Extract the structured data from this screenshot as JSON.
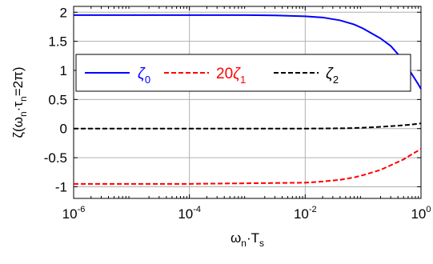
{
  "chart_data": {
    "type": "line",
    "xscale": "log",
    "xlim": [
      1e-06,
      1
    ],
    "ylim": [
      -1.2,
      2.1
    ],
    "grid": true,
    "legend_position": "upper-left, inside axes",
    "x_ticks": [
      {
        "value": 1e-06,
        "base": "10",
        "exp": "-6"
      },
      {
        "value": 0.0001,
        "base": "10",
        "exp": "-4"
      },
      {
        "value": 0.01,
        "base": "10",
        "exp": "-2"
      },
      {
        "value": 1,
        "base": "10",
        "exp": "0"
      }
    ],
    "y_ticks": [
      {
        "value": 2,
        "label": "2"
      },
      {
        "value": 1.5,
        "label": "1.5"
      },
      {
        "value": 1,
        "label": "1"
      },
      {
        "value": 0.5,
        "label": "0.5"
      },
      {
        "value": 0,
        "label": "0"
      },
      {
        "value": -0.5,
        "label": "-0.5"
      },
      {
        "value": -1,
        "label": "-1"
      }
    ],
    "xlabel": {
      "main": "ω",
      "sub": "n",
      "rest": "·T",
      "sub2": "s"
    },
    "ylabel": {
      "pre": "ζ(ω",
      "sub1": "n",
      "mid": "·τ",
      "sub2": "n",
      "post": "=2π)"
    },
    "series": [
      {
        "legend_main": "ζ",
        "legend_sub": "0",
        "legend_prefix": "",
        "color": "#0000ff",
        "dash": "solid",
        "x": [
          1e-06,
          1e-05,
          0.0001,
          0.001,
          0.003,
          0.01,
          0.02,
          0.04,
          0.07,
          0.1,
          0.15,
          0.2,
          0.3,
          0.4,
          0.5,
          0.6,
          0.7,
          0.8,
          0.9,
          1.0
        ],
        "y": [
          1.95,
          1.95,
          1.95,
          1.95,
          1.945,
          1.93,
          1.91,
          1.86,
          1.79,
          1.72,
          1.62,
          1.55,
          1.42,
          1.28,
          1.16,
          1.04,
          0.93,
          0.84,
          0.76,
          0.68
        ]
      },
      {
        "legend_main": "ζ",
        "legend_sub": "1",
        "legend_prefix": "20",
        "color": "#ff0000",
        "dash": "dashed",
        "x": [
          1e-06,
          1e-05,
          0.0001,
          0.001,
          0.003,
          0.01,
          0.02,
          0.04,
          0.07,
          0.1,
          0.2,
          0.3,
          0.5,
          0.7,
          1.0
        ],
        "y": [
          -0.95,
          -0.95,
          -0.95,
          -0.94,
          -0.935,
          -0.93,
          -0.91,
          -0.88,
          -0.84,
          -0.8,
          -0.71,
          -0.63,
          -0.53,
          -0.44,
          -0.35
        ]
      },
      {
        "legend_main": "ζ",
        "legend_sub": "2",
        "legend_prefix": "",
        "color": "#000000",
        "dash": "dashed",
        "x": [
          1e-06,
          0.0001,
          0.01,
          0.05,
          0.1,
          0.2,
          0.4,
          0.7,
          1.0
        ],
        "y": [
          0,
          0,
          0,
          0.005,
          0.015,
          0.03,
          0.05,
          0.07,
          0.09
        ]
      }
    ]
  }
}
